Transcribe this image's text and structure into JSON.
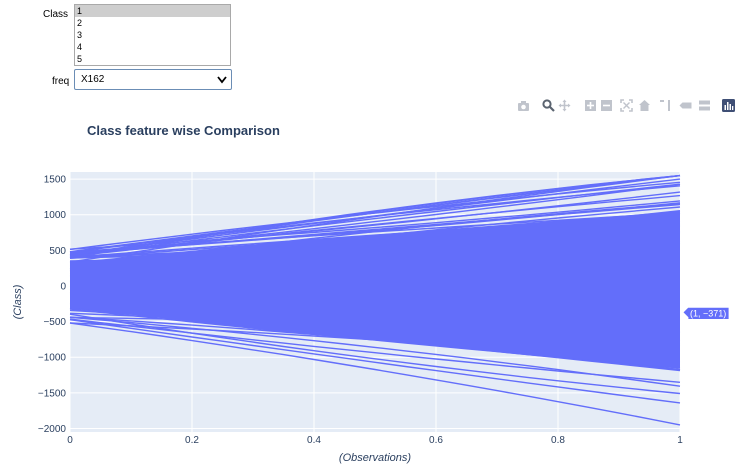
{
  "controls": {
    "class_label": "Class",
    "class_options": [
      "1",
      "2",
      "3",
      "4",
      "5"
    ],
    "class_selected": "1",
    "freq_label": "freq",
    "freq_value": "X162"
  },
  "modebar": {
    "icons": [
      "camera-icon",
      "zoom-icon",
      "pan-icon",
      "zoom-in-icon",
      "zoom-out-icon",
      "autoscale-icon",
      "reset-axes-icon",
      "spike-lines-icon",
      "hover-closest-icon",
      "hover-compare-icon",
      "plotly-logo-icon"
    ]
  },
  "chart_data": {
    "type": "line",
    "title": "Class feature wise Comparison",
    "xlabel": "(Observations)",
    "ylabel": "(Class)",
    "xlim": [
      0,
      1
    ],
    "ylim": [
      -2050,
      1600
    ],
    "xticks": [
      "0",
      "0.2",
      "0.4",
      "0.6",
      "0.8",
      "1"
    ],
    "yticks": [
      "1500",
      "1000",
      "500",
      "0",
      "−500",
      "−1000",
      "−1500",
      "−2000"
    ],
    "ytick_values": [
      1500,
      1000,
      500,
      0,
      -500,
      -1000,
      -1500,
      -2000
    ],
    "xtick_values": [
      0,
      0.2,
      0.4,
      0.6,
      0.8,
      1
    ],
    "series_color": "#636efa",
    "background": "#e5ecf6",
    "series_note_hidden": true,
    "hover_label": "(1, −371)",
    "hover_point": [
      1,
      -371
    ],
    "grid": true,
    "fan_series": {
      "start_range": [
        -520,
        520
      ],
      "end_range": [
        -1950,
        1550
      ],
      "count": 90
    }
  }
}
